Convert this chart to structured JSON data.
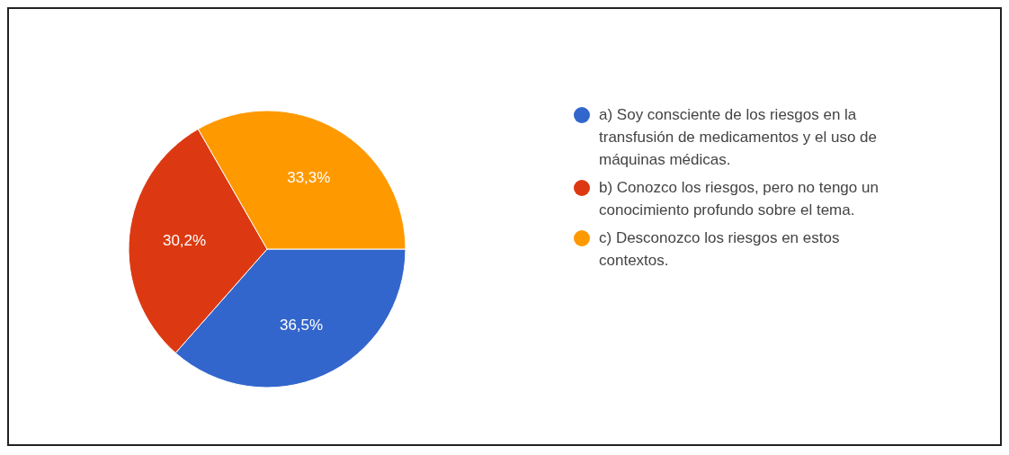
{
  "chart_data": {
    "type": "pie",
    "categories": [
      "a) Soy consciente de los riesgos en la transfusión de medicamentos y el uso de máquinas médicas.",
      "b) Conozco los riesgos, pero no tengo un conocimiento profundo sobre el tema.",
      "c) Desconozco los riesgos en estos contextos."
    ],
    "values": [
      36.5,
      30.2,
      33.3
    ],
    "value_labels": [
      "36,5%",
      "30,2%",
      "33,3%"
    ],
    "colors": [
      "#3366cc",
      "#dc3912",
      "#ff9900"
    ],
    "legend": "right"
  }
}
